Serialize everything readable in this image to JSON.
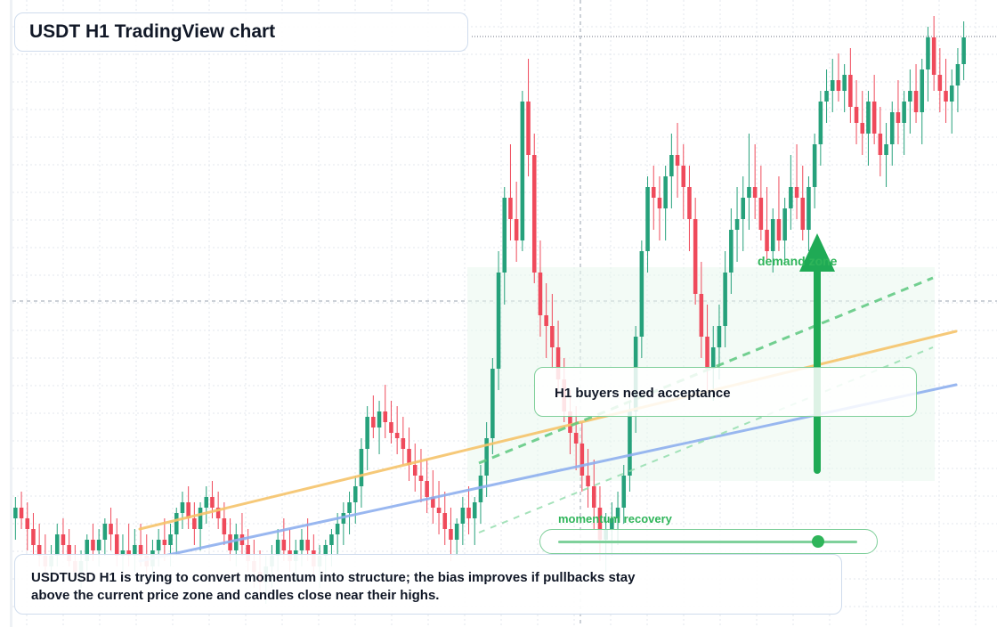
{
  "title": "USDT H1 TradingView chart",
  "note": "H1 buyers need acceptance",
  "summary": {
    "line1": "USDTUSD H1 is trying to convert momentum into structure; the bias improves if pullbacks stay",
    "line2": "above the current price zone and candles close near their highs."
  },
  "momentum": {
    "label": "momentum recovery",
    "level": 0.87
  },
  "demand_zone_label": "demand zone",
  "colors": {
    "bull": "#26a17b",
    "bear": "#ef4a5b",
    "ma_fast": "#f6c46b",
    "ma_slow": "#8fb0ef",
    "accent": "#1faa55"
  },
  "chart_data": {
    "type": "candlestick",
    "timeframe": "H1",
    "grid": true,
    "ylim": [
      0,
      100
    ],
    "candles": [
      {
        "o": 10,
        "h": 14,
        "l": 6,
        "c": 12
      },
      {
        "o": 12,
        "h": 15,
        "l": 8,
        "c": 10
      },
      {
        "o": 10,
        "h": 13,
        "l": 4,
        "c": 8
      },
      {
        "o": 8,
        "h": 11,
        "l": 3,
        "c": 5
      },
      {
        "o": 5,
        "h": 9,
        "l": 1,
        "c": 3
      },
      {
        "o": 3,
        "h": 7,
        "l": -2,
        "c": 1
      },
      {
        "o": 1,
        "h": 5,
        "l": -2,
        "c": 3
      },
      {
        "o": 3,
        "h": 9,
        "l": 1,
        "c": 7
      },
      {
        "o": 7,
        "h": 10,
        "l": 3,
        "c": 5
      },
      {
        "o": 5,
        "h": 8,
        "l": 1,
        "c": 2
      },
      {
        "o": 2,
        "h": 5,
        "l": -1,
        "c": 0
      },
      {
        "o": 0,
        "h": 4,
        "l": -3,
        "c": 2
      },
      {
        "o": 2,
        "h": 7,
        "l": 0,
        "c": 6
      },
      {
        "o": 6,
        "h": 9,
        "l": 2,
        "c": 4
      },
      {
        "o": 4,
        "h": 8,
        "l": 1,
        "c": 6
      },
      {
        "o": 6,
        "h": 10,
        "l": 3,
        "c": 9
      },
      {
        "o": 9,
        "h": 12,
        "l": 4,
        "c": 7
      },
      {
        "o": 7,
        "h": 10,
        "l": 1,
        "c": 3
      },
      {
        "o": 3,
        "h": 7,
        "l": 0,
        "c": 4
      },
      {
        "o": 4,
        "h": 9,
        "l": 1,
        "c": 3
      },
      {
        "o": 3,
        "h": 8,
        "l": 0,
        "c": 5
      },
      {
        "o": 5,
        "h": 9,
        "l": 1,
        "c": 3
      },
      {
        "o": 3,
        "h": 7,
        "l": -1,
        "c": 1
      },
      {
        "o": 1,
        "h": 6,
        "l": -2,
        "c": 4
      },
      {
        "o": 4,
        "h": 8,
        "l": 1,
        "c": 6
      },
      {
        "o": 6,
        "h": 10,
        "l": 2,
        "c": 5
      },
      {
        "o": 5,
        "h": 9,
        "l": 1,
        "c": 7
      },
      {
        "o": 7,
        "h": 12,
        "l": 3,
        "c": 11
      },
      {
        "o": 11,
        "h": 15,
        "l": 8,
        "c": 13
      },
      {
        "o": 13,
        "h": 16,
        "l": 8,
        "c": 10
      },
      {
        "o": 10,
        "h": 13,
        "l": 5,
        "c": 8
      },
      {
        "o": 8,
        "h": 13,
        "l": 4,
        "c": 12
      },
      {
        "o": 12,
        "h": 16,
        "l": 9,
        "c": 14
      },
      {
        "o": 14,
        "h": 17,
        "l": 10,
        "c": 12
      },
      {
        "o": 12,
        "h": 15,
        "l": 8,
        "c": 10
      },
      {
        "o": 10,
        "h": 13,
        "l": 5,
        "c": 7
      },
      {
        "o": 7,
        "h": 10,
        "l": 2,
        "c": 4
      },
      {
        "o": 4,
        "h": 9,
        "l": 1,
        "c": 7
      },
      {
        "o": 7,
        "h": 11,
        "l": 3,
        "c": 5
      },
      {
        "o": 5,
        "h": 8,
        "l": 0,
        "c": 2
      },
      {
        "o": 2,
        "h": 6,
        "l": -3,
        "c": 0
      },
      {
        "o": 0,
        "h": 4,
        "l": -4,
        "c": -2
      },
      {
        "o": -2,
        "h": 3,
        "l": -6,
        "c": 1
      },
      {
        "o": 1,
        "h": 5,
        "l": -3,
        "c": 3
      },
      {
        "o": 3,
        "h": 8,
        "l": 0,
        "c": 6
      },
      {
        "o": 6,
        "h": 10,
        "l": 2,
        "c": 4
      },
      {
        "o": 4,
        "h": 8,
        "l": 0,
        "c": 2
      },
      {
        "o": 2,
        "h": 6,
        "l": -2,
        "c": 4
      },
      {
        "o": 4,
        "h": 8,
        "l": 1,
        "c": 6
      },
      {
        "o": 6,
        "h": 10,
        "l": 2,
        "c": 4
      },
      {
        "o": 4,
        "h": 7,
        "l": -1,
        "c": 1
      },
      {
        "o": 1,
        "h": 5,
        "l": -3,
        "c": 3
      },
      {
        "o": 3,
        "h": 6,
        "l": -1,
        "c": 5
      },
      {
        "o": 5,
        "h": 8,
        "l": 1,
        "c": 7
      },
      {
        "o": 7,
        "h": 11,
        "l": 3,
        "c": 9
      },
      {
        "o": 9,
        "h": 13,
        "l": 5,
        "c": 11
      },
      {
        "o": 11,
        "h": 15,
        "l": 7,
        "c": 13
      },
      {
        "o": 13,
        "h": 18,
        "l": 9,
        "c": 16
      },
      {
        "o": 16,
        "h": 25,
        "l": 12,
        "c": 23
      },
      {
        "o": 23,
        "h": 31,
        "l": 19,
        "c": 29
      },
      {
        "o": 29,
        "h": 33,
        "l": 25,
        "c": 27
      },
      {
        "o": 27,
        "h": 32,
        "l": 22,
        "c": 30
      },
      {
        "o": 30,
        "h": 35,
        "l": 25,
        "c": 28
      },
      {
        "o": 28,
        "h": 32,
        "l": 24,
        "c": 26
      },
      {
        "o": 26,
        "h": 31,
        "l": 22,
        "c": 25
      },
      {
        "o": 25,
        "h": 29,
        "l": 20,
        "c": 23
      },
      {
        "o": 23,
        "h": 27,
        "l": 17,
        "c": 20
      },
      {
        "o": 20,
        "h": 24,
        "l": 15,
        "c": 18
      },
      {
        "o": 18,
        "h": 23,
        "l": 13,
        "c": 17
      },
      {
        "o": 17,
        "h": 21,
        "l": 11,
        "c": 14
      },
      {
        "o": 14,
        "h": 19,
        "l": 9,
        "c": 12
      },
      {
        "o": 12,
        "h": 17,
        "l": 7,
        "c": 11
      },
      {
        "o": 11,
        "h": 15,
        "l": 5,
        "c": 8
      },
      {
        "o": 8,
        "h": 12,
        "l": 2,
        "c": 6
      },
      {
        "o": 6,
        "h": 10,
        "l": 3,
        "c": 9
      },
      {
        "o": 9,
        "h": 14,
        "l": 5,
        "c": 12
      },
      {
        "o": 12,
        "h": 16,
        "l": 7,
        "c": 10
      },
      {
        "o": 10,
        "h": 14,
        "l": 5,
        "c": 13
      },
      {
        "o": 13,
        "h": 20,
        "l": 9,
        "c": 18
      },
      {
        "o": 18,
        "h": 28,
        "l": 14,
        "c": 25
      },
      {
        "o": 25,
        "h": 40,
        "l": 22,
        "c": 38
      },
      {
        "o": 38,
        "h": 60,
        "l": 34,
        "c": 56
      },
      {
        "o": 56,
        "h": 72,
        "l": 50,
        "c": 70
      },
      {
        "o": 70,
        "h": 80,
        "l": 62,
        "c": 66
      },
      {
        "o": 66,
        "h": 73,
        "l": 58,
        "c": 62
      },
      {
        "o": 62,
        "h": 90,
        "l": 60,
        "c": 88
      },
      {
        "o": 88,
        "h": 96,
        "l": 74,
        "c": 78
      },
      {
        "o": 78,
        "h": 82,
        "l": 54,
        "c": 56
      },
      {
        "o": 56,
        "h": 62,
        "l": 44,
        "c": 48
      },
      {
        "o": 48,
        "h": 54,
        "l": 40,
        "c": 46
      },
      {
        "o": 46,
        "h": 52,
        "l": 38,
        "c": 42
      },
      {
        "o": 42,
        "h": 47,
        "l": 33,
        "c": 36
      },
      {
        "o": 36,
        "h": 40,
        "l": 28,
        "c": 30
      },
      {
        "o": 30,
        "h": 34,
        "l": 22,
        "c": 26
      },
      {
        "o": 26,
        "h": 31,
        "l": 19,
        "c": 24
      },
      {
        "o": 24,
        "h": 28,
        "l": 15,
        "c": 18
      },
      {
        "o": 18,
        "h": 23,
        "l": 12,
        "c": 16
      },
      {
        "o": 16,
        "h": 21,
        "l": 8,
        "c": 12
      },
      {
        "o": 12,
        "h": 16,
        "l": 2,
        "c": 6
      },
      {
        "o": 6,
        "h": 11,
        "l": 0,
        "c": 8
      },
      {
        "o": 8,
        "h": 13,
        "l": 3,
        "c": 10
      },
      {
        "o": 10,
        "h": 15,
        "l": 5,
        "c": 12
      },
      {
        "o": 12,
        "h": 20,
        "l": 9,
        "c": 18
      },
      {
        "o": 18,
        "h": 32,
        "l": 15,
        "c": 30
      },
      {
        "o": 30,
        "h": 46,
        "l": 26,
        "c": 44
      },
      {
        "o": 44,
        "h": 62,
        "l": 40,
        "c": 60
      },
      {
        "o": 60,
        "h": 74,
        "l": 56,
        "c": 72
      },
      {
        "o": 72,
        "h": 76,
        "l": 64,
        "c": 70
      },
      {
        "o": 70,
        "h": 74,
        "l": 62,
        "c": 68
      },
      {
        "o": 68,
        "h": 76,
        "l": 62,
        "c": 74
      },
      {
        "o": 74,
        "h": 82,
        "l": 68,
        "c": 78
      },
      {
        "o": 78,
        "h": 84,
        "l": 70,
        "c": 76
      },
      {
        "o": 76,
        "h": 80,
        "l": 66,
        "c": 72
      },
      {
        "o": 72,
        "h": 76,
        "l": 60,
        "c": 66
      },
      {
        "o": 66,
        "h": 70,
        "l": 50,
        "c": 52
      },
      {
        "o": 52,
        "h": 58,
        "l": 40,
        "c": 44
      },
      {
        "o": 44,
        "h": 50,
        "l": 34,
        "c": 38
      },
      {
        "o": 38,
        "h": 46,
        "l": 32,
        "c": 42
      },
      {
        "o": 42,
        "h": 50,
        "l": 36,
        "c": 46
      },
      {
        "o": 46,
        "h": 60,
        "l": 42,
        "c": 56
      },
      {
        "o": 56,
        "h": 68,
        "l": 52,
        "c": 64
      },
      {
        "o": 64,
        "h": 72,
        "l": 58,
        "c": 66
      },
      {
        "o": 66,
        "h": 74,
        "l": 60,
        "c": 70
      },
      {
        "o": 70,
        "h": 82,
        "l": 64,
        "c": 72
      },
      {
        "o": 72,
        "h": 80,
        "l": 66,
        "c": 70
      },
      {
        "o": 70,
        "h": 76,
        "l": 62,
        "c": 64
      },
      {
        "o": 64,
        "h": 72,
        "l": 58,
        "c": 60
      },
      {
        "o": 60,
        "h": 68,
        "l": 56,
        "c": 66
      },
      {
        "o": 66,
        "h": 74,
        "l": 60,
        "c": 62
      },
      {
        "o": 62,
        "h": 70,
        "l": 58,
        "c": 68
      },
      {
        "o": 68,
        "h": 78,
        "l": 64,
        "c": 72
      },
      {
        "o": 72,
        "h": 80,
        "l": 66,
        "c": 70
      },
      {
        "o": 70,
        "h": 76,
        "l": 62,
        "c": 64
      },
      {
        "o": 64,
        "h": 74,
        "l": 60,
        "c": 72
      },
      {
        "o": 72,
        "h": 82,
        "l": 68,
        "c": 80
      },
      {
        "o": 80,
        "h": 90,
        "l": 76,
        "c": 88
      },
      {
        "o": 88,
        "h": 94,
        "l": 84,
        "c": 90
      },
      {
        "o": 90,
        "h": 96,
        "l": 86,
        "c": 92
      },
      {
        "o": 92,
        "h": 97,
        "l": 88,
        "c": 90
      },
      {
        "o": 90,
        "h": 95,
        "l": 86,
        "c": 93
      },
      {
        "o": 93,
        "h": 98,
        "l": 84,
        "c": 87
      },
      {
        "o": 87,
        "h": 92,
        "l": 80,
        "c": 84
      },
      {
        "o": 84,
        "h": 90,
        "l": 78,
        "c": 82
      },
      {
        "o": 82,
        "h": 90,
        "l": 76,
        "c": 88
      },
      {
        "o": 88,
        "h": 93,
        "l": 80,
        "c": 82
      },
      {
        "o": 82,
        "h": 87,
        "l": 74,
        "c": 78
      },
      {
        "o": 78,
        "h": 84,
        "l": 72,
        "c": 80
      },
      {
        "o": 80,
        "h": 88,
        "l": 76,
        "c": 86
      },
      {
        "o": 86,
        "h": 92,
        "l": 80,
        "c": 84
      },
      {
        "o": 84,
        "h": 90,
        "l": 78,
        "c": 88
      },
      {
        "o": 88,
        "h": 94,
        "l": 82,
        "c": 90
      },
      {
        "o": 90,
        "h": 95,
        "l": 84,
        "c": 86
      },
      {
        "o": 86,
        "h": 96,
        "l": 80,
        "c": 94
      },
      {
        "o": 94,
        "h": 102,
        "l": 88,
        "c": 100
      },
      {
        "o": 100,
        "h": 104,
        "l": 90,
        "c": 93
      },
      {
        "o": 93,
        "h": 98,
        "l": 86,
        "c": 90
      },
      {
        "o": 90,
        "h": 96,
        "l": 84,
        "c": 88
      },
      {
        "o": 88,
        "h": 94,
        "l": 82,
        "c": 91
      },
      {
        "o": 91,
        "h": 98,
        "l": 86,
        "c": 95
      },
      {
        "o": 95,
        "h": 103,
        "l": 92,
        "c": 100
      }
    ],
    "moving_averages": [
      {
        "name": "",
        "color": "#f6c46b",
        "y": [
          8,
          45
        ]
      },
      {
        "name": "",
        "color": "#8fb0ef",
        "y": [
          2,
          35
        ]
      }
    ]
  }
}
